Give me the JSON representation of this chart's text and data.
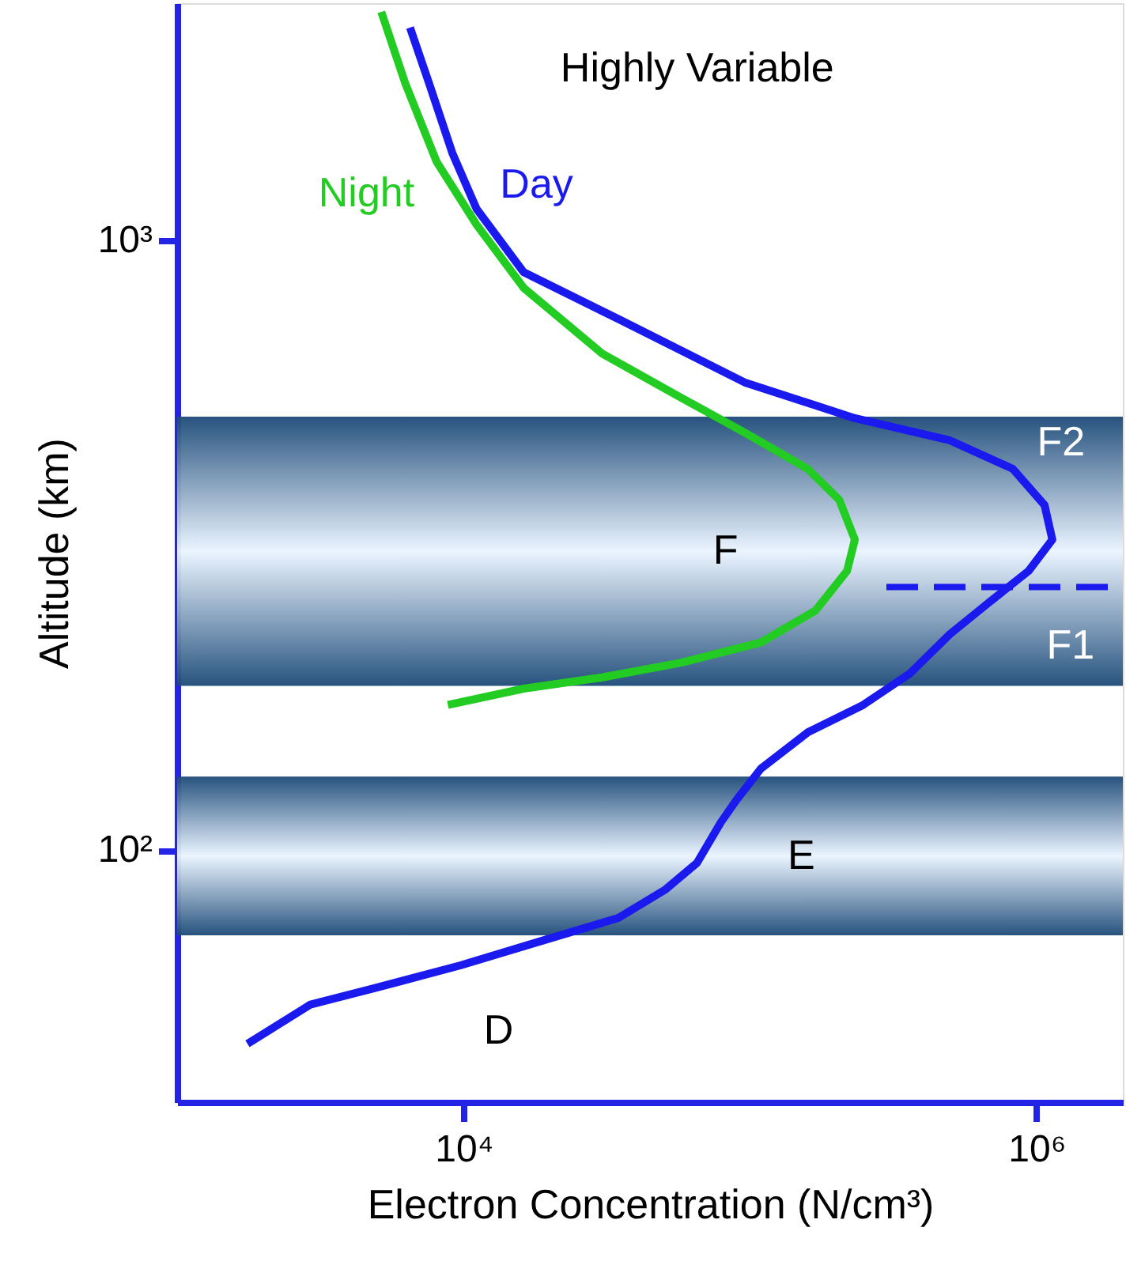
{
  "chart_data": {
    "type": "line",
    "xlabel": "Electron Concentration (N/cm³)",
    "ylabel": "Altitude (km)",
    "log": "xy",
    "xlim": [
      1000,
      2000000
    ],
    "ylim": [
      38.6,
      2450
    ],
    "xticks": [
      {
        "value": 10000,
        "label": "10⁴"
      },
      {
        "value": 1000000,
        "label": "10⁶"
      }
    ],
    "yticks": [
      {
        "value": 100,
        "label": "10²"
      },
      {
        "value": 1000,
        "label": "10³"
      }
    ],
    "grid": false,
    "legend": false,
    "marker": "none",
    "bands": [
      {
        "axis": "y",
        "from": 186,
        "to": 514,
        "color": "#1c4a78",
        "label": "F"
      },
      {
        "axis": "y",
        "from": 72.5,
        "to": 132,
        "color": "#1c4a78",
        "label": "E"
      }
    ],
    "ref_lines": [
      {
        "axis": "y",
        "value": 270,
        "label": "F1",
        "color": "#1a1aee",
        "line_style": "dashed"
      }
    ],
    "series": [
      {
        "name": "Night",
        "color": "#22cc22",
        "x": [
          8810,
          16200,
          30500,
          57500,
          109000,
          169000,
          218000,
          232000,
          205000,
          159000,
          95700,
          57500,
          30500,
          16200,
          11100,
          8050,
          6250,
          5160
        ],
        "values": [
          173,
          184,
          192,
          203,
          219,
          247,
          287,
          323,
          375,
          422,
          484,
          552,
          652,
          836,
          1061,
          1346,
          1812,
          2371
        ]
      },
      {
        "name": "Day",
        "color": "#1a1aee",
        "x": [
          1760,
          2920,
          4850,
          9750,
          18400,
          34700,
          50700,
          65300,
          79000,
          89800,
          109000,
          159000,
          248000,
          362000,
          498000,
          684000,
          938000,
          1135000,
          1066000,
          826000,
          498000,
          232000,
          95700,
          34700,
          16200,
          11100,
          9150,
          7570,
          6500
        ],
        "values": [
          48.1,
          55.8,
          59.3,
          64.7,
          70.8,
          77.4,
          86.2,
          95.3,
          111,
          121,
          136,
          156,
          173,
          195,
          226,
          255,
          287,
          323,
          368,
          422,
          470,
          511,
          585,
          743,
          887,
          1126,
          1388,
          1812,
          2234
        ]
      }
    ],
    "annotations": [
      "Highly Variable",
      "F2",
      "D"
    ]
  }
}
